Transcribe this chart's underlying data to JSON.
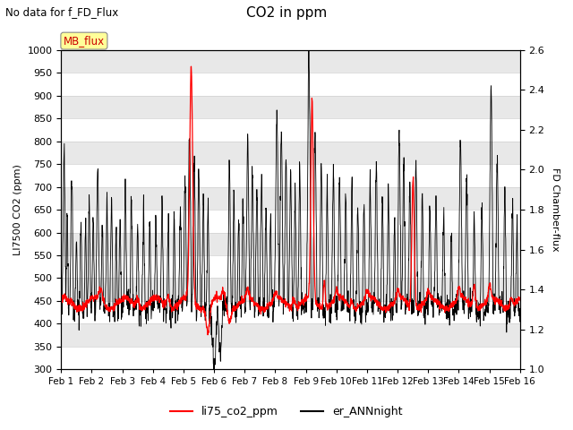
{
  "title": "CO2 in ppm",
  "top_left_text": "No data for f_FD_Flux",
  "ylabel_left": "LI7500 CO2 (ppm)",
  "ylabel_right": "FD Chamber-flux",
  "ylim_left": [
    300,
    1000
  ],
  "ylim_right": [
    1.0,
    2.6
  ],
  "yticks_left": [
    300,
    350,
    400,
    450,
    500,
    550,
    600,
    650,
    700,
    750,
    800,
    850,
    900,
    950,
    1000
  ],
  "yticks_right": [
    1.0,
    1.2,
    1.4,
    1.6,
    1.8,
    2.0,
    2.2,
    2.4,
    2.6
  ],
  "xlabels": [
    "Feb 1",
    "Feb 2",
    "Feb 3",
    "Feb 4",
    "Feb 5",
    "Feb 6",
    "Feb 7",
    "Feb 8",
    "Feb 9",
    "Feb 10",
    "Feb 11",
    "Feb 12",
    "Feb 13",
    "Feb 14",
    "Feb 15",
    "Feb 16"
  ],
  "legend_entries": [
    "li75_co2_ppm",
    "er_ANNnight"
  ],
  "legend_colors": [
    "red",
    "black"
  ],
  "mb_flux_box_color": "#ffff99",
  "mb_flux_text_color": "#cc0000",
  "background_color": "#f0f0f0",
  "plot_bg_color": "#ffffff",
  "grid_color": "#d0d0d0",
  "figsize": [
    6.4,
    4.8
  ],
  "dpi": 100
}
